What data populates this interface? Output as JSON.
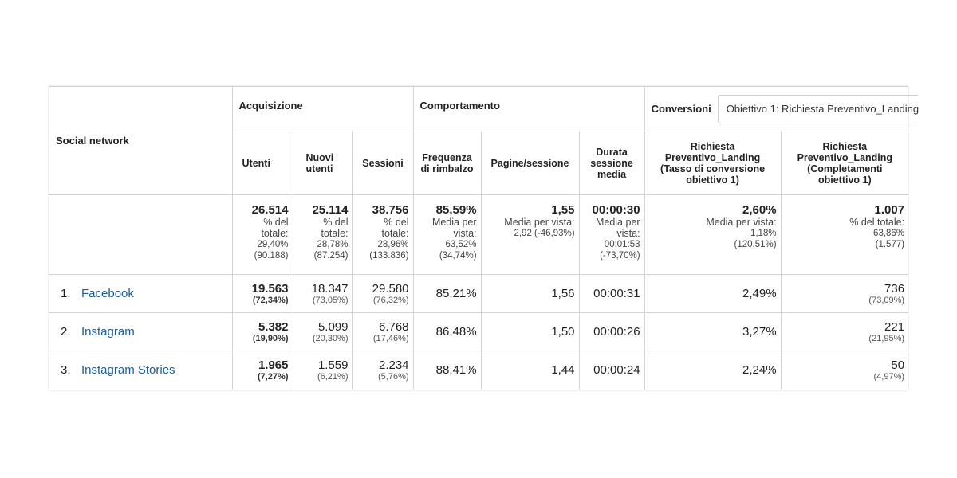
{
  "table": {
    "dimension_header": "Social network",
    "groups": {
      "acquisition": "Acquisizione",
      "behavior": "Comportamento",
      "conversions": "Conversioni"
    },
    "goal_selector": {
      "value": "Obiettivo 1: Richiesta Preventivo_Landing"
    },
    "columns": [
      {
        "label": "Utenti"
      },
      {
        "label": "Nuovi utenti"
      },
      {
        "label": "Sessioni"
      },
      {
        "label": "Frequenza di rimbalzo"
      },
      {
        "label": "Pagine/sessione"
      },
      {
        "label": "Durata sessione media"
      },
      {
        "label": "Richiesta Preventivo_Landing (Tasso di conversione obiettivo 1)"
      },
      {
        "label": "Richiesta Preventivo_Landing (Completamenti obiettivo 1)"
      }
    ],
    "totals": [
      {
        "value": "26.514",
        "caption": "% del totale:",
        "sub": "29,40% (90.188)"
      },
      {
        "value": "25.114",
        "caption": "% del totale:",
        "sub": "28,78% (87.254)"
      },
      {
        "value": "38.756",
        "caption": "% del totale:",
        "sub": "28,96% (133.836)"
      },
      {
        "value": "85,59%",
        "caption": "Media per vista:",
        "sub": "63,52% (34,74%)"
      },
      {
        "value": "1,55",
        "caption": "Media per vista:",
        "sub": "2,92 (-46,93%)"
      },
      {
        "value": "00:00:30",
        "caption": "Media per vista:",
        "sub": "00:01:53 (-73,70%)"
      },
      {
        "value": "2,60%",
        "caption": "Media per vista:",
        "sub": "1,18% (120,51%)"
      },
      {
        "value": "1.007",
        "caption": "% del totale:",
        "sub": "63,86% (1.577)"
      }
    ],
    "rows": [
      {
        "index": "1.",
        "name": "Facebook",
        "users": "19.563",
        "users_pct": "(72,34%)",
        "new_users": "18.347",
        "new_users_pct": "(73,05%)",
        "sessions": "29.580",
        "sessions_pct": "(76,32%)",
        "bounce": "85,21%",
        "pages": "1,56",
        "duration": "00:00:31",
        "conv_rate": "2,49%",
        "completions": "736",
        "completions_pct": "(73,09%)"
      },
      {
        "index": "2.",
        "name": "Instagram",
        "users": "5.382",
        "users_pct": "(19,90%)",
        "new_users": "5.099",
        "new_users_pct": "(20,30%)",
        "sessions": "6.768",
        "sessions_pct": "(17,46%)",
        "bounce": "86,48%",
        "pages": "1,50",
        "duration": "00:00:26",
        "conv_rate": "3,27%",
        "completions": "221",
        "completions_pct": "(21,95%)"
      },
      {
        "index": "3.",
        "name": "Instagram Stories",
        "users": "1.965",
        "users_pct": "(7,27%)",
        "new_users": "1.559",
        "new_users_pct": "(6,21%)",
        "sessions": "2.234",
        "sessions_pct": "(5,76%)",
        "bounce": "88,41%",
        "pages": "1,44",
        "duration": "00:00:24",
        "conv_rate": "2,24%",
        "completions": "50",
        "completions_pct": "(4,97%)"
      }
    ],
    "colors": {
      "link": "#1a5c9e",
      "border": "#d4d4d4"
    }
  }
}
